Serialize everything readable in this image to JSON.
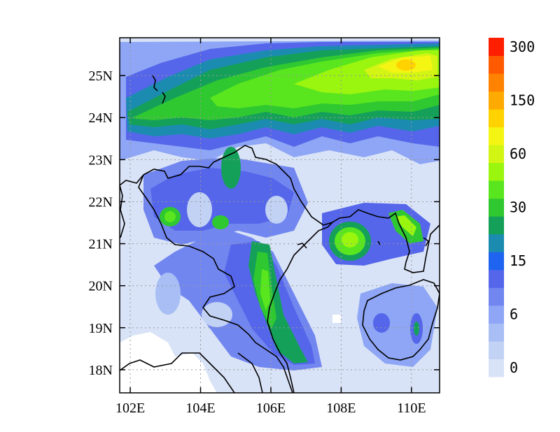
{
  "map": {
    "region": "Northern Vietnam / South China",
    "lon_ticks": [
      {
        "value": 102,
        "label": "102E"
      },
      {
        "value": 104,
        "label": "104E"
      },
      {
        "value": 106,
        "label": "106E"
      },
      {
        "value": 108,
        "label": "108E"
      },
      {
        "value": 110,
        "label": "110E"
      }
    ],
    "lat_ticks": [
      {
        "value": 18,
        "label": "18N"
      },
      {
        "value": 19,
        "label": "19N"
      },
      {
        "value": 20,
        "label": "20N"
      },
      {
        "value": 21,
        "label": "21N"
      },
      {
        "value": 22,
        "label": "22N"
      },
      {
        "value": 23,
        "label": "23N"
      },
      {
        "value": 24,
        "label": "24N"
      },
      {
        "value": 25,
        "label": "25N"
      }
    ],
    "lon_range": [
      101.7,
      110.8
    ],
    "lat_range": [
      17.45,
      25.9
    ],
    "grid": true
  },
  "colorbar": {
    "colors": [
      "#d9e3f7",
      "#c2d2f5",
      "#a8bef5",
      "#8ea6f5",
      "#7286f0",
      "#5566ea",
      "#1e64f0",
      "#1b8cb0",
      "#15a05a",
      "#30c830",
      "#5ae61e",
      "#9af50f",
      "#d2f514",
      "#f5f514",
      "#ffd200",
      "#ffaa00",
      "#ff8200",
      "#ff5a00",
      "#ff1e00"
    ],
    "labels": [
      {
        "index": 0,
        "text": "0"
      },
      {
        "index": 3,
        "text": "6"
      },
      {
        "index": 6,
        "text": "15"
      },
      {
        "index": 9,
        "text": "30"
      },
      {
        "index": 12,
        "text": "60"
      },
      {
        "index": 15,
        "text": "150"
      },
      {
        "index": 18,
        "text": "300"
      }
    ]
  }
}
